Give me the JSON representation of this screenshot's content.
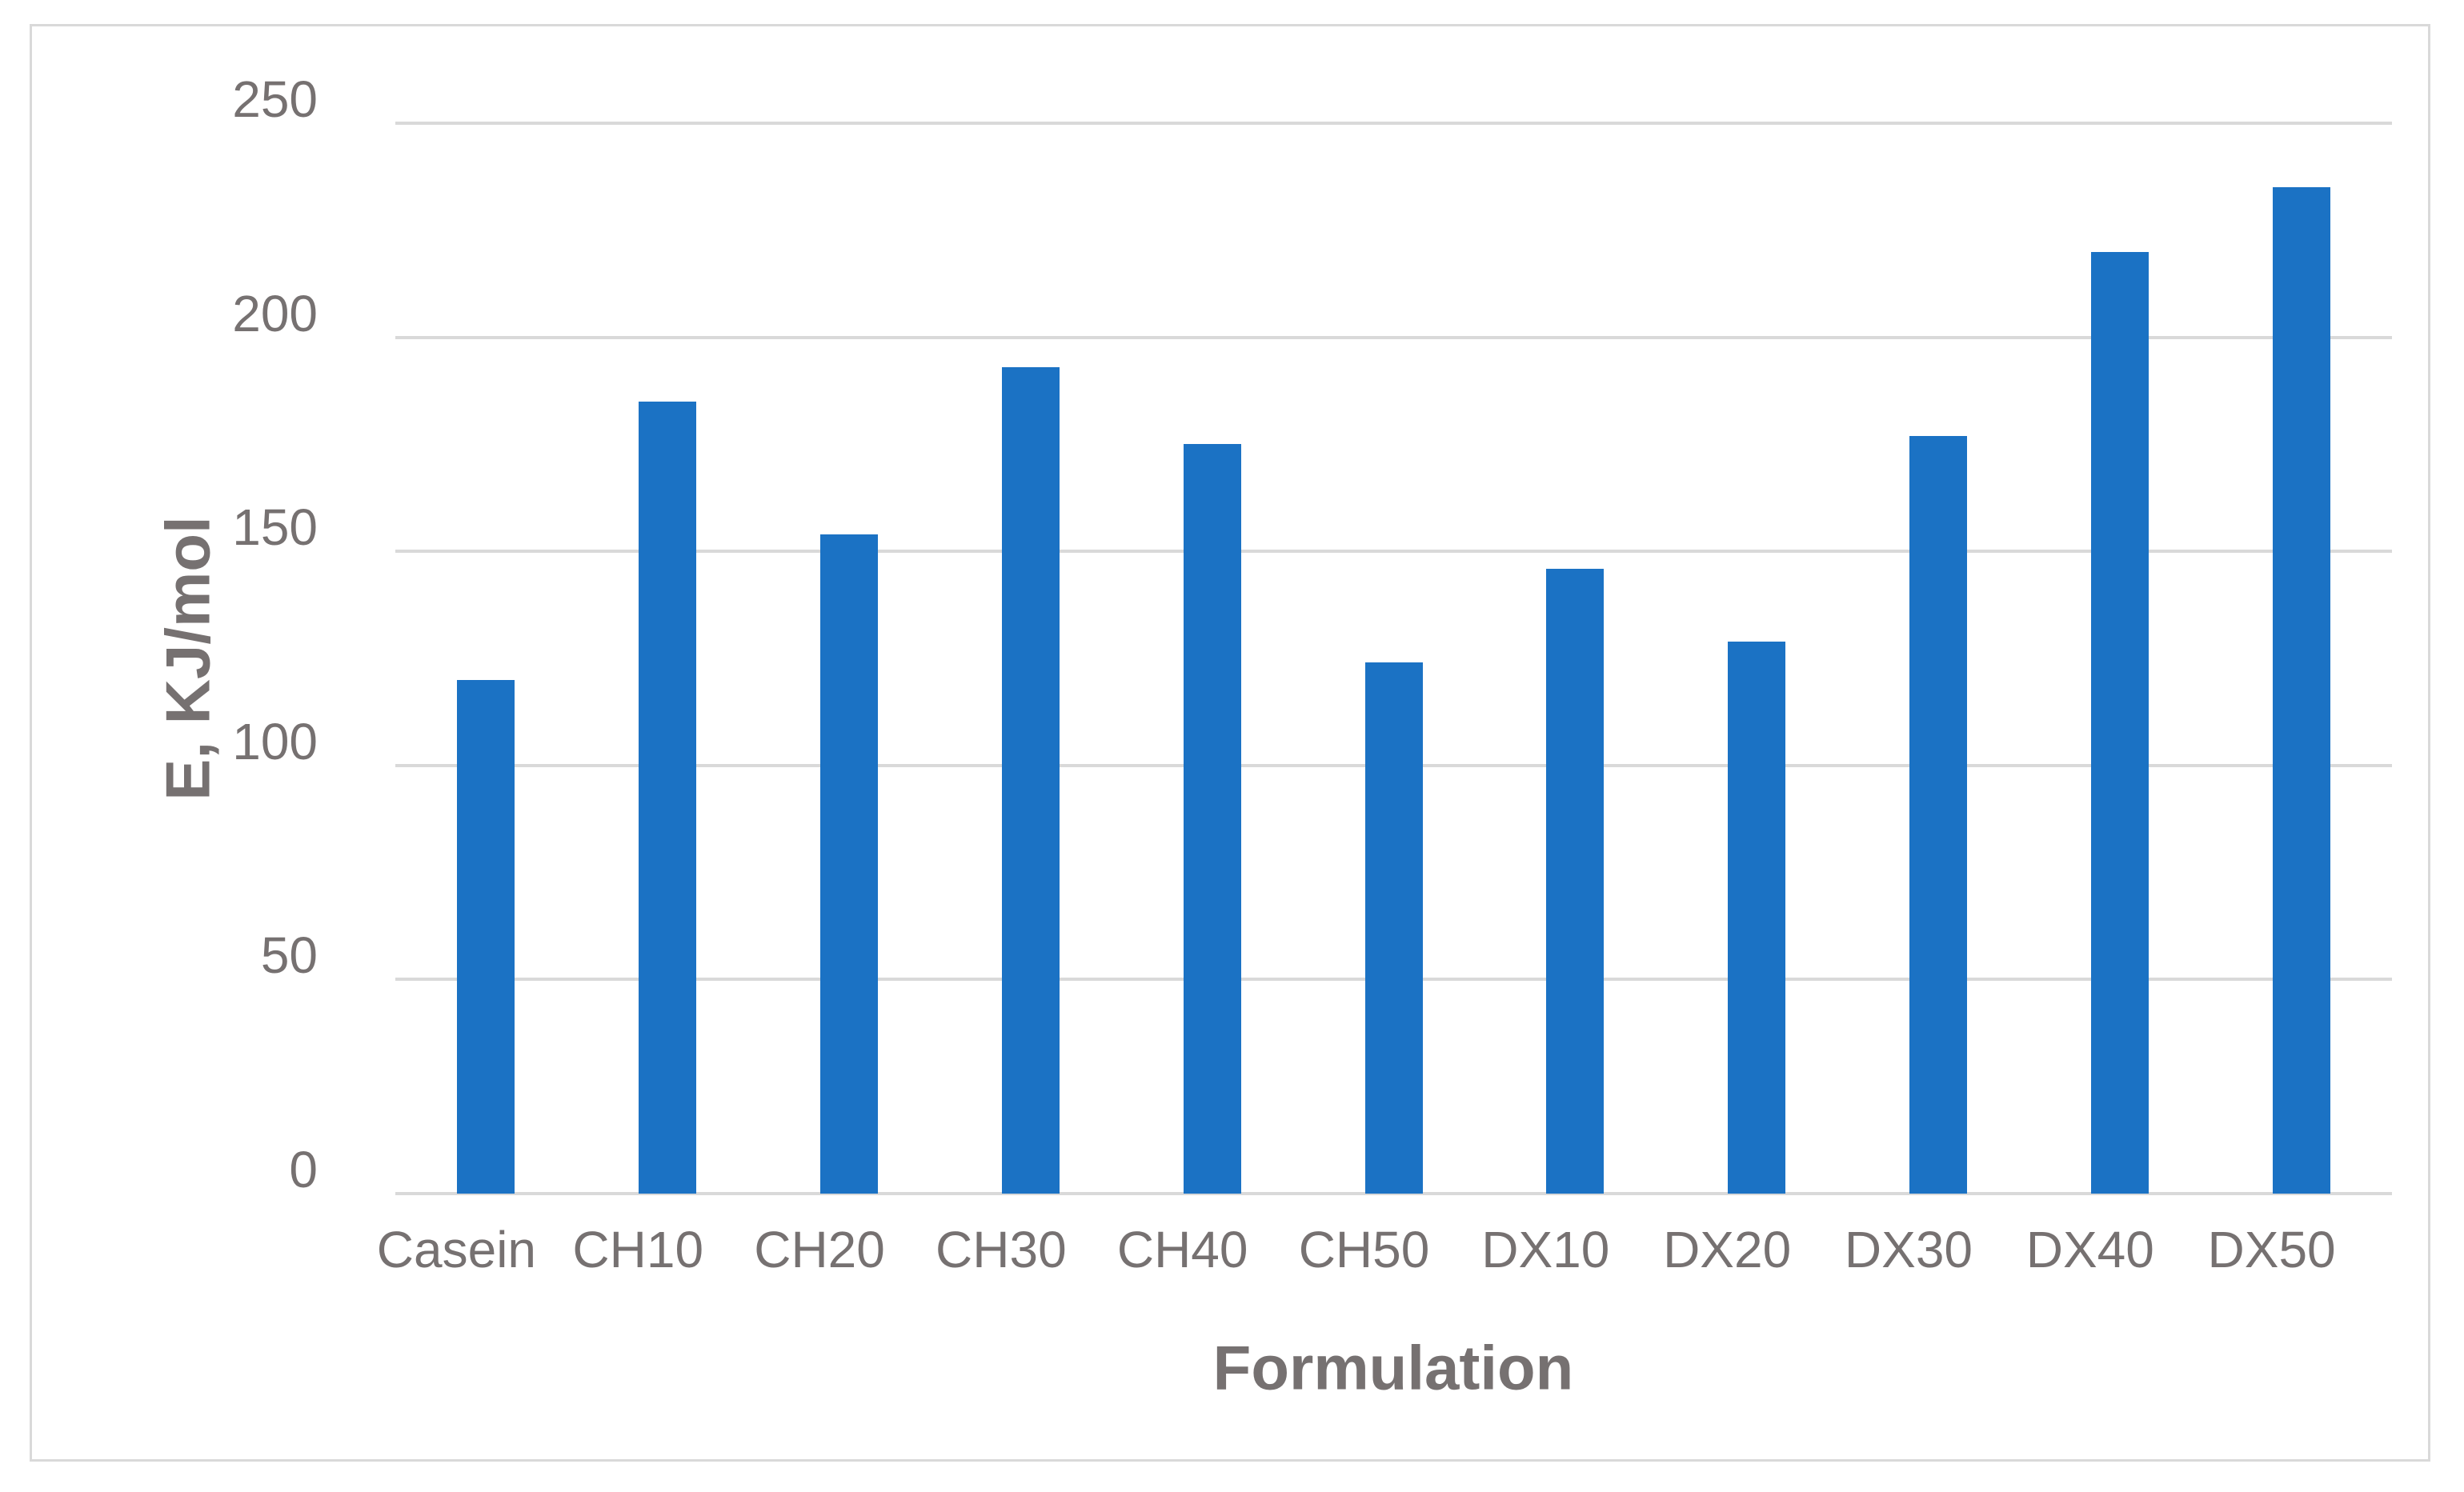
{
  "chart_data": {
    "type": "bar",
    "categories": [
      "Casein",
      "CH10",
      "CH20",
      "CH30",
      "CH40",
      "CH50",
      "DX10",
      "DX20",
      "DX30",
      "DX40",
      "DX50"
    ],
    "values": [
      120,
      185,
      154,
      193,
      175,
      124,
      146,
      129,
      177,
      220,
      235
    ],
    "title": "",
    "xlabel": "Formulation",
    "ylabel": "E, KJ/mol",
    "ylim": [
      0,
      250
    ],
    "yticks": [
      0,
      50,
      100,
      150,
      200,
      250
    ],
    "grid": true,
    "legend": null,
    "colors": {
      "bar": "#1b72c4",
      "gridline": "#d9d9d9",
      "frame_border": "#d9d9d9",
      "text": "#767171",
      "background": "#ffffff"
    }
  }
}
